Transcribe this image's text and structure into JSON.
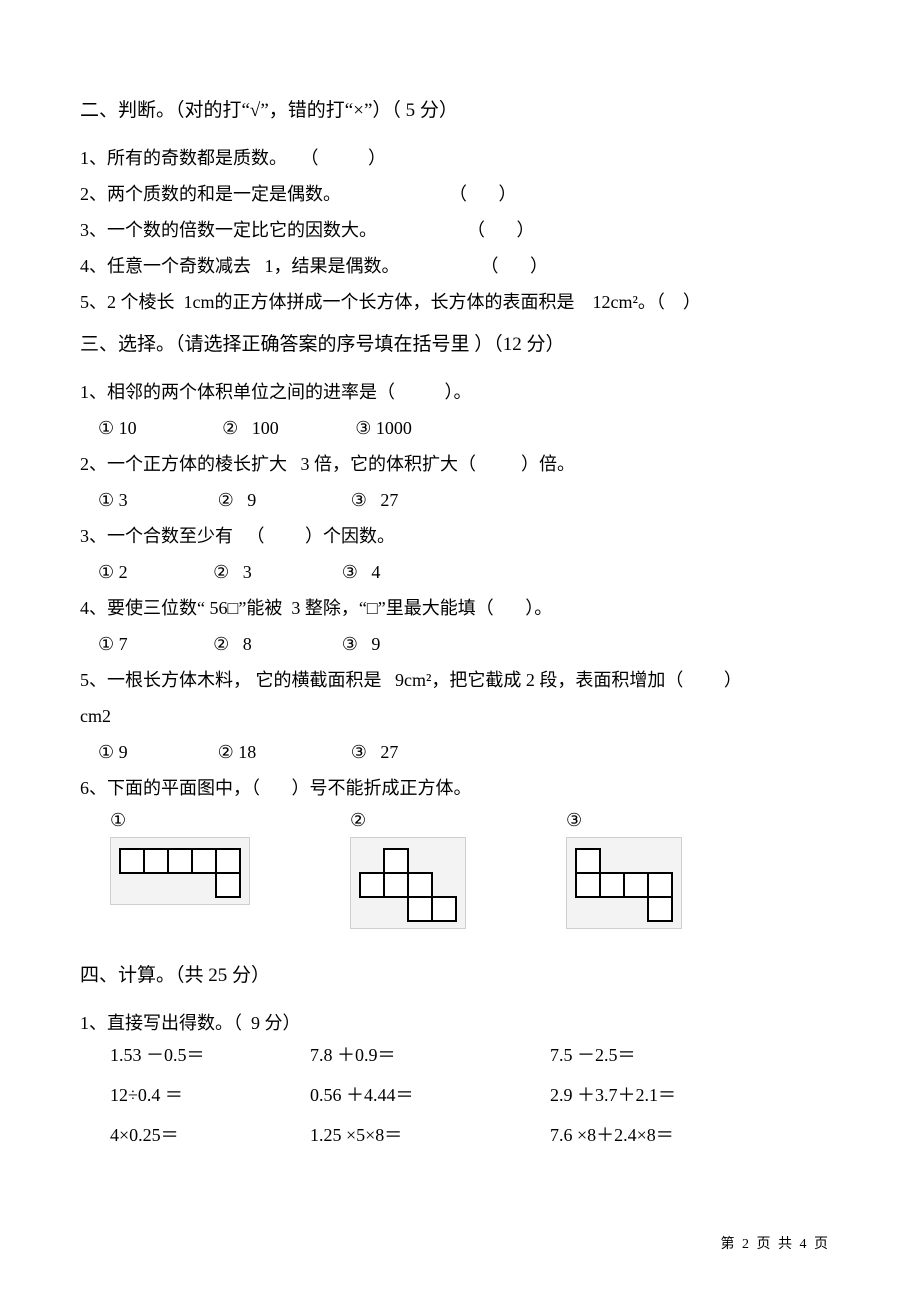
{
  "colors": {
    "text": "#000000",
    "background": "#ffffff",
    "netFill": "#ffffff",
    "netStroke": "#000000",
    "netStrokeWidth": 2,
    "netPanelBg": "#f3f3f3",
    "netPanelBorder": "#cfcfcf"
  },
  "typography": {
    "bodyFont": "SimSun",
    "bodySize": 18,
    "headingSize": 19
  },
  "section2": {
    "heading": "二、判断。（对的打“√”，错的打“×”）（   5 分）",
    "items": [
      "1、所有的奇数都是质数。   （           ）",
      "2、两个质数的和是一定是偶数。                        （       ）",
      "3、一个数的倍数一定比它的因数大。                    （       ）",
      "4、任意一个奇数减去   1，结果是偶数。                  （       ）",
      "5、2 个棱长  1cm的正方体拼成一个长方体，长方体的表面积是    12cm²。（    ）"
    ]
  },
  "section3": {
    "heading": "三、选择。（请选择正确答案的序号填在括号里   ）（12 分）",
    "q1": {
      "stem": "1、相邻的两个体积单位之间的进率是（           ）。",
      "opts": "    ① 10                   ②   100                 ③ 1000"
    },
    "q2": {
      "stem": "2、一个正方体的棱长扩大   3 倍，它的体积扩大（          ）倍。",
      "opts": "    ① 3                    ②   9                     ③   27"
    },
    "q3": {
      "stem": "3、一个合数至少有   （         ）个因数。",
      "opts": "    ① 2                   ②   3                    ③   4"
    },
    "q4": {
      "stem": "4、要使三位数“ 56□”能被  3 整除，“□”里最大能填（       ）。",
      "opts": "    ① 7                   ②   8                    ③   9"
    },
    "q5": {
      "stem1": "5、一根长方体木料， 它的横截面积是   9cm²，把它截成 2 段，表面积增加（         ）",
      "stem2": "cm2",
      "opts": "    ① 9                    ② 18                     ③   27"
    },
    "q6": {
      "stem": "6、下面的平面图中，（       ）号不能折成正方体。",
      "labels": [
        "①",
        "②",
        "③"
      ],
      "cellSize": 24,
      "nets": {
        "net1": {
          "cells": [
            [
              0,
              0
            ],
            [
              1,
              0
            ],
            [
              2,
              0
            ],
            [
              3,
              0
            ],
            [
              4,
              0
            ],
            [
              4,
              1
            ]
          ],
          "cols": 5,
          "rows": 2
        },
        "net2": {
          "cells": [
            [
              1,
              0
            ],
            [
              0,
              1
            ],
            [
              1,
              1
            ],
            [
              2,
              1
            ],
            [
              2,
              2
            ],
            [
              3,
              2
            ]
          ],
          "cols": 4,
          "rows": 3
        },
        "net3": {
          "cells": [
            [
              0,
              0
            ],
            [
              0,
              1
            ],
            [
              1,
              1
            ],
            [
              2,
              1
            ],
            [
              3,
              1
            ],
            [
              3,
              2
            ]
          ],
          "cols": 4,
          "rows": 3
        }
      }
    }
  },
  "section4": {
    "heading": "四、计算。（共   25 分）",
    "sub1": "1、直接写出得数。（  9 分）",
    "grid": [
      [
        "1.53 －0.5＝",
        "7.8 ＋0.9＝",
        "7.5   －2.5＝"
      ],
      [
        "12÷0.4 ＝",
        "0.56 ＋4.44＝",
        "2.9 ＋3.7＋2.1＝"
      ],
      [
        "4×0.25＝",
        "1.25 ×5×8＝",
        "7.6   ×8＋2.4×8＝"
      ]
    ]
  },
  "footer": "第 2 页 共 4 页"
}
